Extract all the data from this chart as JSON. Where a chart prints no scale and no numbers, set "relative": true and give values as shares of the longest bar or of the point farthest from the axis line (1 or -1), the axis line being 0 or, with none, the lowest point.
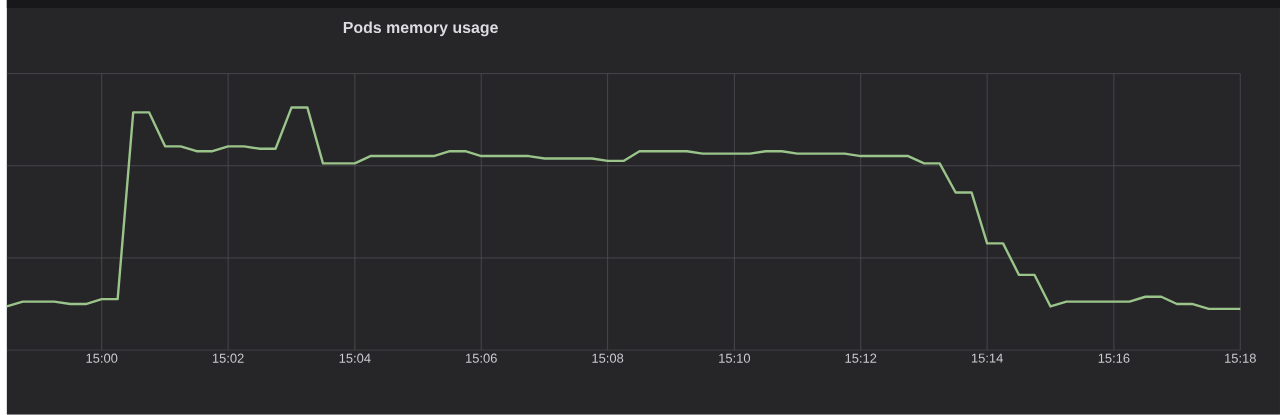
{
  "chart_data": {
    "type": "line",
    "title": "Pods memory usage",
    "relative": true,
    "grid": true,
    "xlim": [
      14.975,
      15.3
    ],
    "xticks": [
      {
        "value": 15,
        "label": "15:00"
      },
      {
        "value": 15.0333,
        "label": "15:02"
      },
      {
        "value": 15.0667,
        "label": "15:04"
      },
      {
        "value": 15.1,
        "label": "15:06"
      },
      {
        "value": 15.1333,
        "label": "15:08"
      },
      {
        "value": 15.1667,
        "label": "15:10"
      },
      {
        "value": 15.2,
        "label": "15:12"
      },
      {
        "value": 15.2333,
        "label": "15:14"
      },
      {
        "value": 15.2667,
        "label": "15:16"
      },
      {
        "value": 15.3,
        "label": "15:18"
      }
    ],
    "x": [
      14.975,
      14.9792,
      14.9833,
      14.9875,
      14.9917,
      14.9958,
      15.0,
      15.0042,
      15.0083,
      15.0125,
      15.0167,
      15.0208,
      15.025,
      15.0292,
      15.0333,
      15.0375,
      15.0417,
      15.0458,
      15.05,
      15.0542,
      15.0583,
      15.0625,
      15.0667,
      15.0708,
      15.075,
      15.0792,
      15.0833,
      15.0875,
      15.0917,
      15.0958,
      15.1,
      15.1042,
      15.1083,
      15.1125,
      15.1167,
      15.1208,
      15.125,
      15.1292,
      15.1333,
      15.1375,
      15.1417,
      15.1458,
      15.15,
      15.1542,
      15.1583,
      15.1625,
      15.1667,
      15.1708,
      15.175,
      15.1792,
      15.1833,
      15.1875,
      15.1917,
      15.1958,
      15.2,
      15.2042,
      15.2083,
      15.2125,
      15.2167,
      15.2208,
      15.225,
      15.2292,
      15.2333,
      15.2375,
      15.2417,
      15.2458,
      15.25,
      15.2542,
      15.2583,
      15.2625,
      15.2667,
      15.2708,
      15.275,
      15.2792,
      15.2833,
      15.2875,
      15.2917,
      15.2958,
      15.3
    ],
    "series": [
      {
        "color": "#9ac48a",
        "values": [
          0.18,
          0.2,
          0.2,
          0.2,
          0.19,
          0.19,
          0.21,
          0.21,
          0.98,
          0.98,
          0.84,
          0.84,
          0.82,
          0.82,
          0.84,
          0.84,
          0.83,
          0.83,
          1.0,
          1.0,
          0.77,
          0.77,
          0.77,
          0.8,
          0.8,
          0.8,
          0.8,
          0.8,
          0.82,
          0.82,
          0.8,
          0.8,
          0.8,
          0.8,
          0.79,
          0.79,
          0.79,
          0.79,
          0.78,
          0.78,
          0.82,
          0.82,
          0.82,
          0.82,
          0.81,
          0.81,
          0.81,
          0.81,
          0.82,
          0.82,
          0.81,
          0.81,
          0.81,
          0.81,
          0.8,
          0.8,
          0.8,
          0.8,
          0.77,
          0.77,
          0.65,
          0.65,
          0.44,
          0.44,
          0.31,
          0.31,
          0.18,
          0.2,
          0.2,
          0.2,
          0.2,
          0.2,
          0.22,
          0.22,
          0.19,
          0.19,
          0.17,
          0.17,
          0.17
        ]
      }
    ]
  }
}
